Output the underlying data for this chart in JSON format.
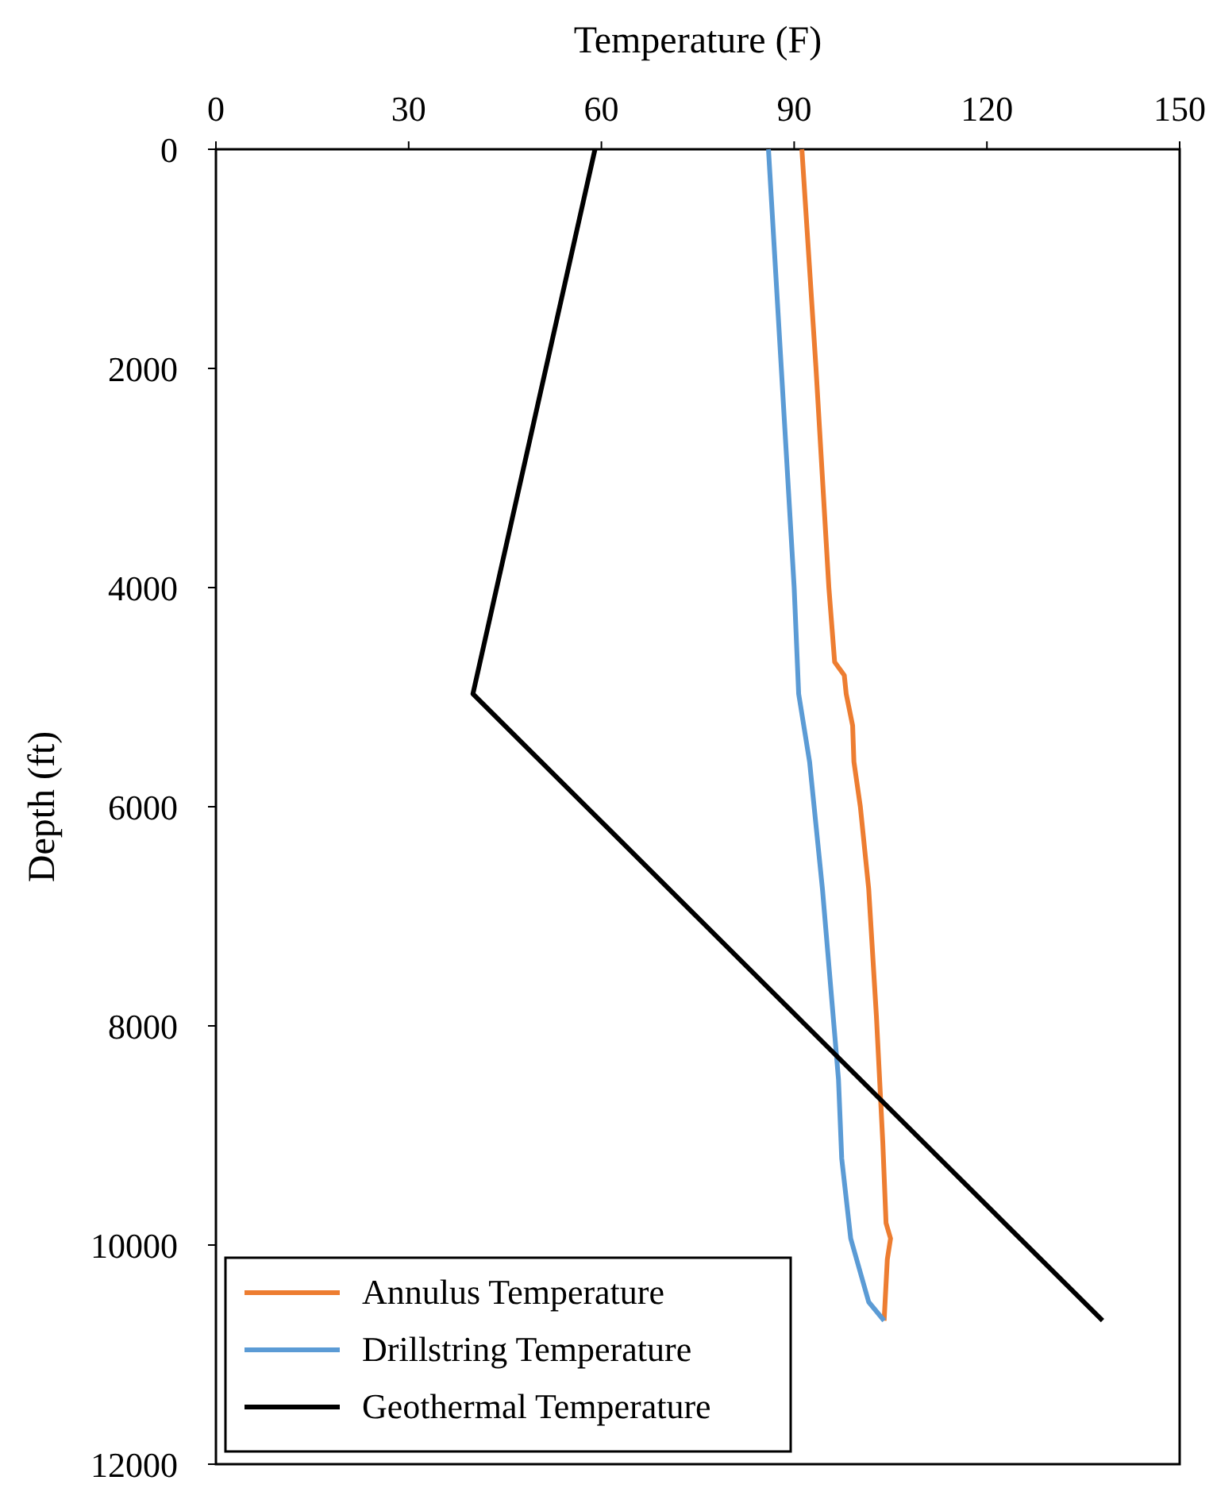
{
  "chart_data": {
    "type": "line",
    "xlabel": "Temperature (F)",
    "ylabel": "Depth (ft)",
    "xlim": [
      0,
      150
    ],
    "xticks": [
      0,
      30,
      60,
      90,
      120,
      150
    ],
    "ylim": [
      12000,
      0
    ],
    "yticks": [
      0,
      2000,
      4000,
      6000,
      8000,
      10000,
      12000
    ],
    "legend": "bottom left",
    "grid": false,
    "marker": "none",
    "line_style": "solid",
    "series": [
      {
        "name": "Annulus Temperature",
        "color": "#ed7d31",
        "x": [
          91.2,
          93.4,
          95.4,
          96.3,
          97.8,
          98.1,
          99.1,
          99.3,
          100.3,
          101.6,
          102.8,
          103.8,
          104.3,
          105,
          104.5,
          104
        ],
        "values": [
          0,
          2000,
          4000,
          4680,
          4800,
          4970,
          5260,
          5590,
          6000,
          6750,
          7910,
          9070,
          9800,
          9940,
          10130,
          10690
        ]
      },
      {
        "name": "Drillstring Temperature",
        "color": "#5b9bd5",
        "x": [
          86,
          88,
          90,
          90.7,
          92.4,
          94.4,
          96.9,
          97.4,
          98.8,
          101.6,
          104
        ],
        "values": [
          0,
          2000,
          4000,
          4970,
          5590,
          6750,
          8490,
          9210,
          9940,
          10520,
          10690
        ]
      },
      {
        "name": "Geothermal Temperature",
        "color": "#000000",
        "x": [
          59,
          40,
          138
        ],
        "values": [
          0,
          4970,
          10690
        ]
      }
    ]
  }
}
